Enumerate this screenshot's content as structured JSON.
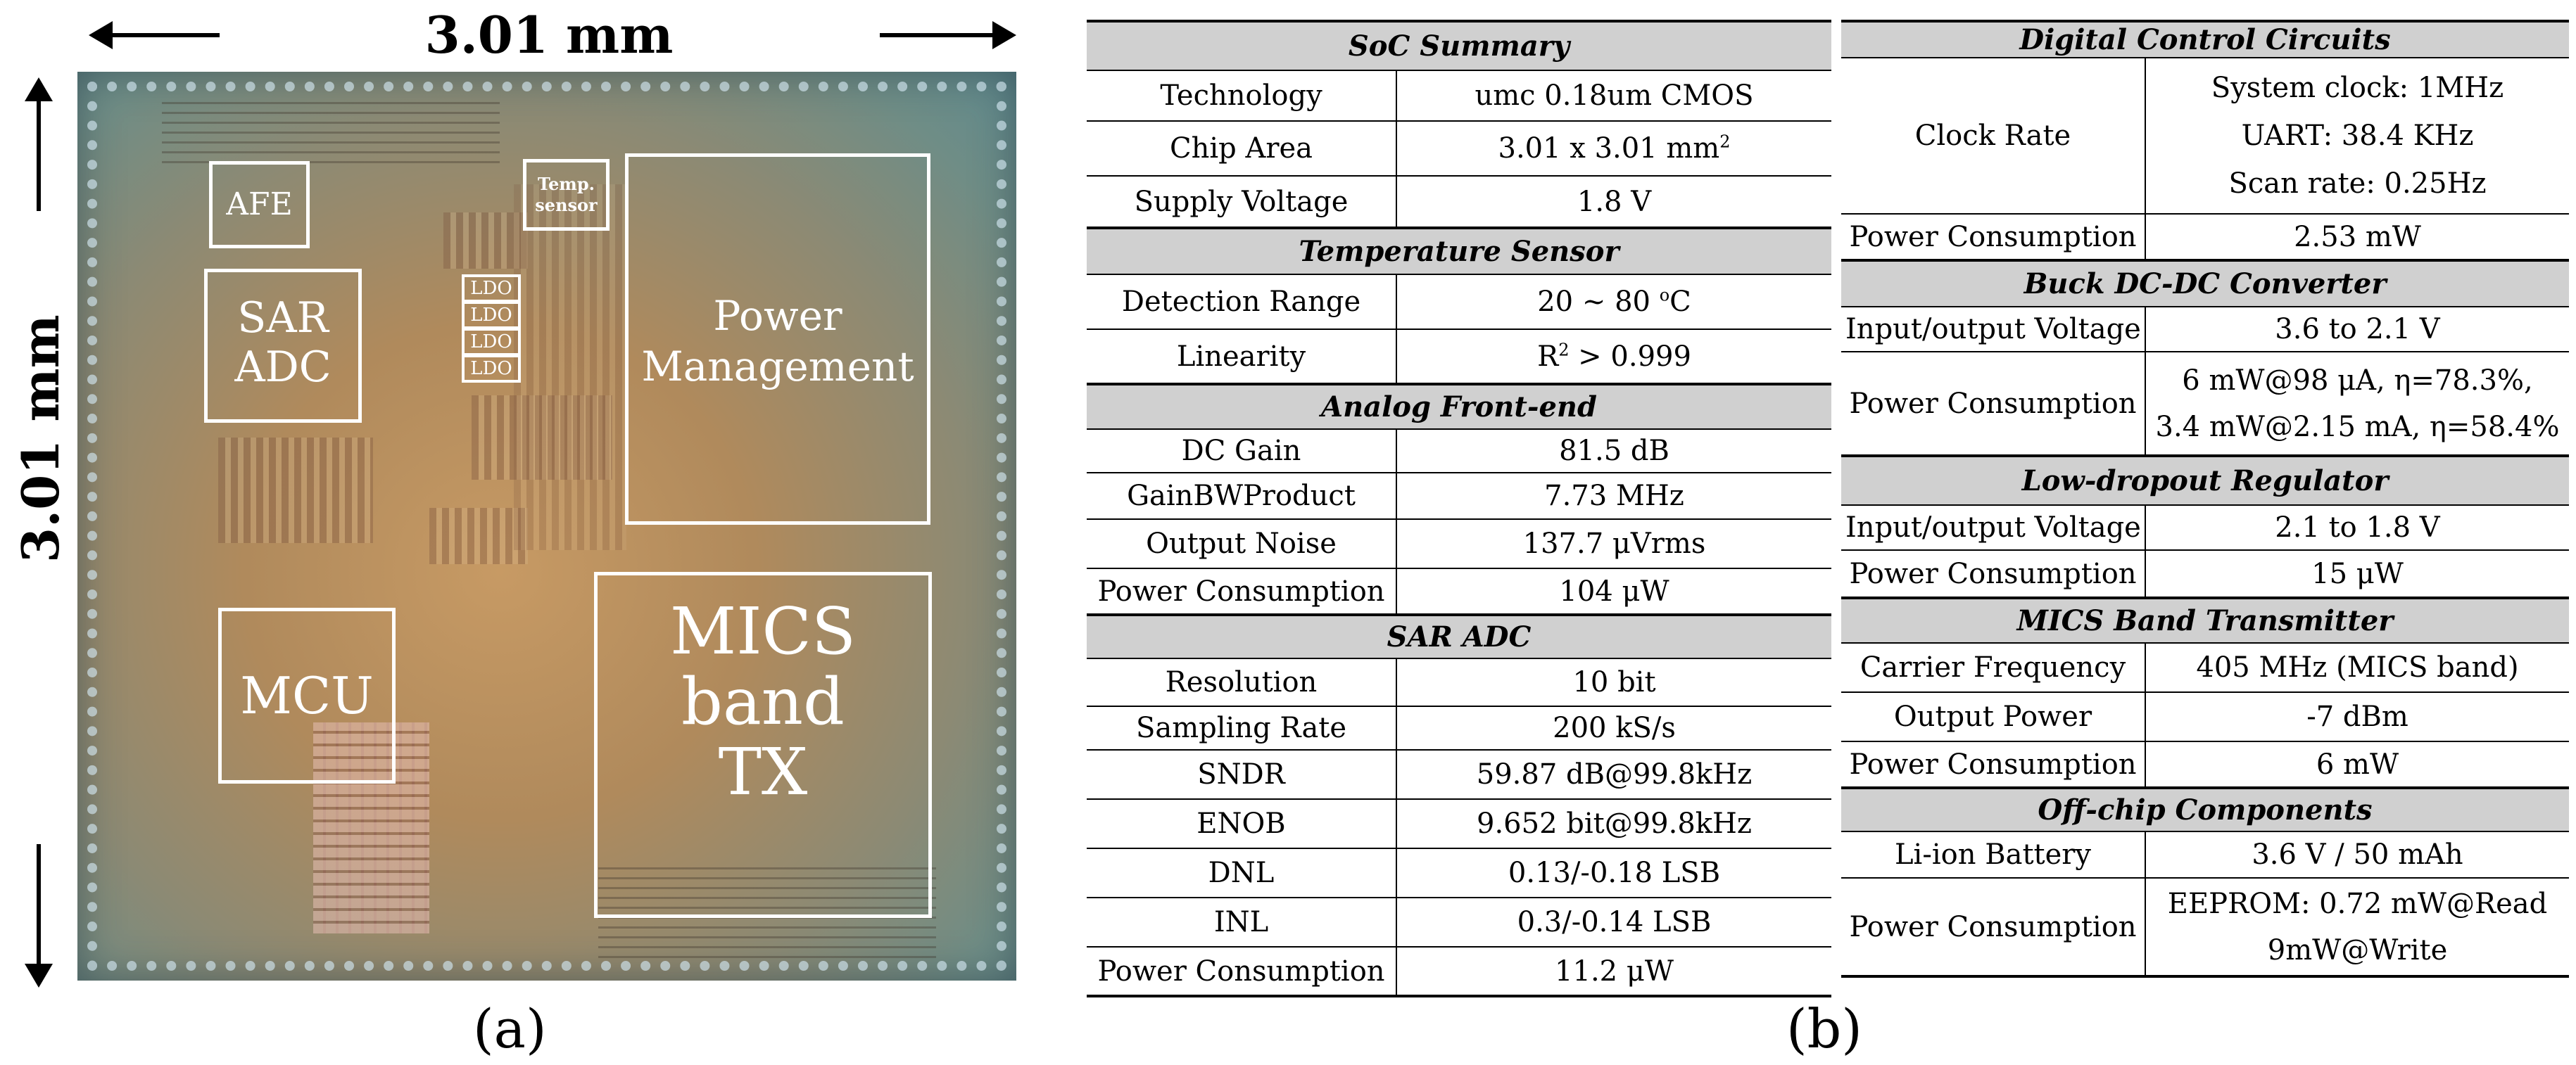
{
  "panel_a": {
    "width_label": "3.01 mm",
    "height_label": "3.01 mm",
    "caption": "(a)",
    "blocks": {
      "afe": "AFE",
      "temp_line1": "Temp.",
      "temp_line2": "sensor",
      "sar_line1": "SAR",
      "sar_line2": "ADC",
      "ldo": "LDO",
      "pm_line1": "Power",
      "pm_line2": "Management",
      "mcu": "MCU",
      "mics_line1": "MICS",
      "mics_line2": "band",
      "mics_line3": "TX"
    }
  },
  "panel_b": {
    "caption": "(b)",
    "left_table": {
      "soc": {
        "title": "SoC Summary",
        "tech_k": "Technology",
        "tech_v": "umc 0.18um CMOS",
        "area_k": "Chip Area",
        "area_v": "3.01 x 3.01 mm",
        "area_sup": "2",
        "supply_k": "Supply Voltage",
        "supply_v": "1.8 V"
      },
      "temp": {
        "title": "Temperature Sensor",
        "range_k": "Detection Range",
        "range_v": "20 ~ 80 ",
        "range_sup": "o",
        "range_unit": "C",
        "lin_k": "Linearity",
        "lin_v_pre": "R",
        "lin_sup": "2",
        "lin_v_post": " > 0.999"
      },
      "afe": {
        "title": "Analog Front-end",
        "gain_k": "DC Gain",
        "gain_v": "81.5 dB",
        "gbw_k": "GainBWProduct",
        "gbw_v": "7.73 MHz",
        "noise_k": "Output Noise",
        "noise_v": "137.7 μVrms",
        "power_k": "Power Consumption",
        "power_v": "104 μW"
      },
      "adc": {
        "title": "SAR ADC",
        "res_k": "Resolution",
        "res_v": "10 bit",
        "rate_k": "Sampling Rate",
        "rate_v": "200 kS/s",
        "sndr_k": "SNDR",
        "sndr_v": "59.87 dB@99.8kHz",
        "enob_k": "ENOB",
        "enob_v": "9.652 bit@99.8kHz",
        "dnl_k": "DNL",
        "dnl_v": "0.13/-0.18 LSB",
        "inl_k": "INL",
        "inl_v": "0.3/-0.14 LSB",
        "power_k": "Power Consumption",
        "power_v": "11.2 μW"
      }
    },
    "right_table": {
      "digital": {
        "title": "Digital Control Circuits",
        "clock_k": "Clock Rate",
        "clock_v1": "System clock: 1MHz",
        "clock_v2": "UART: 38.4 KHz",
        "clock_v3": "Scan rate: 0.25Hz",
        "power_k": "Power Consumption",
        "power_v": "2.53 mW"
      },
      "buck": {
        "title": "Buck DC-DC Converter",
        "io_k": "Input/output Voltage",
        "io_v": "3.6 to 2.1 V",
        "power_k": "Power Consumption",
        "power_v1": "6 mW@98 μA, η=78.3%,",
        "power_v2": "3.4 mW@2.15 mA, η=58.4%"
      },
      "ldo": {
        "title": "Low-dropout Regulator",
        "io_k": "Input/output Voltage",
        "io_v": "2.1 to 1.8 V",
        "power_k": "Power Consumption",
        "power_v": "15 μW"
      },
      "mics": {
        "title": "MICS Band Transmitter",
        "freq_k": "Carrier Frequency",
        "freq_v": "405 MHz (MICS band)",
        "out_k": "Output Power",
        "out_v": "-7 dBm",
        "power_k": "Power Consumption",
        "power_v": "6 mW"
      },
      "offchip": {
        "title": "Off-chip Components",
        "batt_k": "Li-ion Battery",
        "batt_v": "3.6 V / 50 mAh",
        "power_k": "Power Consumption",
        "power_v1": "EEPROM: 0.72 mW@Read",
        "power_v2": "9mW@Write"
      }
    }
  }
}
